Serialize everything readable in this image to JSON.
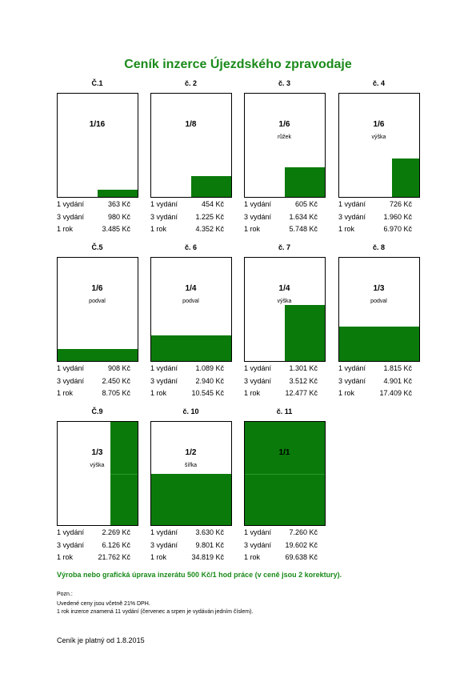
{
  "header": {
    "title": "Ceník inzerce Újezdského zpravodaje"
  },
  "items": [
    {
      "number": "Č.1",
      "size": "1/16",
      "prices": [
        [
          "1 vydání",
          "363 Kč"
        ],
        [
          "3 vydání",
          "980 Kč"
        ],
        [
          "1 rok",
          "3.485 Kč"
        ]
      ]
    },
    {
      "number": "č. 2",
      "size": "1/8",
      "prices": [
        [
          "1 vydání",
          "454 Kč"
        ],
        [
          "3 vydání",
          "1.225 Kč"
        ],
        [
          "1 rok",
          "4.352 Kč"
        ]
      ]
    },
    {
      "number": "č. 3",
      "size": "1/6",
      "note": "růžek",
      "prices": [
        [
          "1 vydání",
          "605 Kč"
        ],
        [
          "3 vydání",
          "1.634 Kč"
        ],
        [
          "1 rok",
          "5.748 Kč"
        ]
      ]
    },
    {
      "number": "č. 4",
      "size": "1/6",
      "note": "výška",
      "prices": [
        [
          "1 vydání",
          "726 Kč"
        ],
        [
          "3 vydání",
          "1.960 Kč"
        ],
        [
          "1 rok",
          "6.970 Kč"
        ]
      ]
    },
    {
      "number": "Č.5",
      "size": "1/6",
      "note": "podval",
      "prices": [
        [
          "1 vydání",
          "908 Kč"
        ],
        [
          "3 vydání",
          "2.450 Kč"
        ],
        [
          "1 rok",
          "8.705 Kč"
        ]
      ]
    },
    {
      "number": "č. 6",
      "size": "1/4",
      "note": "podval",
      "prices": [
        [
          "1 vydání",
          "1.089 Kč"
        ],
        [
          "3 vydání",
          "2.940 Kč"
        ],
        [
          "1 rok",
          "10.545 Kč"
        ]
      ]
    },
    {
      "number": "č. 7",
      "size": "1/4",
      "note": "výška",
      "prices": [
        [
          "1 vydání",
          "1.301 Kč"
        ],
        [
          "3 vydání",
          "3.512 Kč"
        ],
        [
          "1 rok",
          "12.477 Kč"
        ]
      ]
    },
    {
      "number": "č. 8",
      "size": "1/3",
      "note": "podval",
      "prices": [
        [
          "1 vydání",
          "1.815 Kč"
        ],
        [
          "3 vydání",
          "4.901 Kč"
        ],
        [
          "1 rok",
          "17.409 Kč"
        ]
      ]
    },
    {
      "number": "Č.9",
      "size": "1/3",
      "note": "výška",
      "prices": [
        [
          "1 vydání",
          "2.269 Kč"
        ],
        [
          "3 vydání",
          "6.126 Kč"
        ],
        [
          "1 rok",
          "21.762 Kč"
        ]
      ]
    },
    {
      "number": "č. 10",
      "size": "1/2",
      "note": "šířka",
      "prices": [
        [
          "1 vydání",
          "3.630 Kč"
        ],
        [
          "3 vydání",
          "9.801 Kč"
        ],
        [
          "1 rok",
          "34.819 Kč"
        ]
      ]
    },
    {
      "number": "č. 11",
      "size": "1/1",
      "prices": [
        [
          "1 vydání",
          "7.260 Kč"
        ],
        [
          "3 vydání",
          "19.602 Kč"
        ],
        [
          "1 rok",
          "69.638 Kč"
        ]
      ]
    }
  ],
  "production": "Výroba nebo grafická úprava inzerátu 500 Kč/1 hod práce (v ceně jsou 2 korektury).",
  "notes": {
    "heading": "Pozn.:",
    "lines": [
      "Uvedené ceny jsou včetně 21% DPH.",
      "1 rok inzerce znamená 11 vydání (červenec a srpen je vydáván jedním číslem)."
    ]
  },
  "validity": "Ceník je platný od 1.8.2015"
}
